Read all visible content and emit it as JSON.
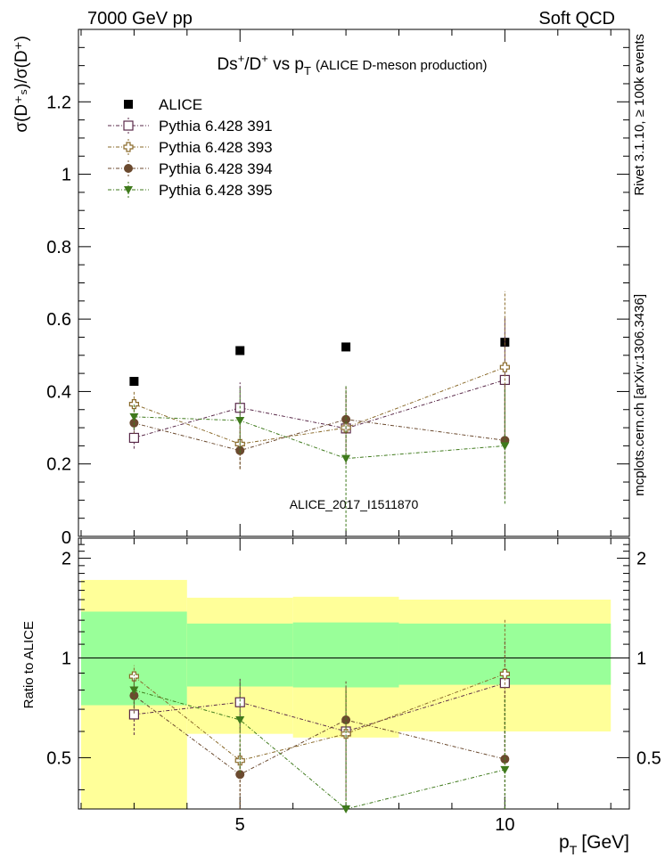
{
  "header": {
    "left": "7000 GeV pp",
    "right": "Soft QCD"
  },
  "side_labels": {
    "rivet": "Rivet 3.1.10, ≥ 100k events",
    "mcplots": "mcplots.cern.ch [arXiv:1306.3436]"
  },
  "chart_data": {
    "type": "scatter",
    "title": {
      "main": "Ds",
      "main_sup": "+",
      "slash": "/D",
      "slash_sup": "+",
      "vs": " vs p",
      "vs_sub": "T",
      "sub": "(ALICE D-meson production)"
    },
    "analysis_tag": "ALICE_2017_I1511870",
    "xlabel": "p",
    "xlabel_sub": "T",
    "xlabel_unit": "[GeV]",
    "ylabel": "σ(D⁺ₛ)/σ(D⁺)",
    "ratio_ylabel": "Ratio to ALICE",
    "xlim": [
      1.95,
      12.35
    ],
    "ylim_main": [
      0,
      1.4
    ],
    "ylim_ratio": [
      0.35,
      2.3
    ],
    "x_ticks": [
      5,
      10
    ],
    "y_ticks_main": [
      0.2,
      0.4,
      0.6,
      0.8,
      1.0,
      1.2
    ],
    "y_ticks_main_labels": [
      "0.2",
      "0.4",
      "0.6",
      "0.8",
      "1",
      "1.2"
    ],
    "y_zero_label": "0",
    "y_ticks_ratio": [
      0.5,
      1,
      2
    ],
    "y_ticks_ratio_labels": [
      "0.5",
      "1",
      "2"
    ],
    "x": [
      3,
      5,
      7,
      10
    ],
    "bins": [
      [
        2,
        4
      ],
      [
        4,
        6
      ],
      [
        6,
        8
      ],
      [
        8,
        12
      ]
    ],
    "series": [
      {
        "name": "ALICE",
        "marker": "square-filled",
        "color": "#000000",
        "values": [
          0.428,
          0.513,
          0.523,
          0.536
        ],
        "err": [
          0,
          0,
          0,
          0
        ]
      },
      {
        "name": "Pythia 6.428 391",
        "marker": "square-open",
        "color": "#5a2a4a",
        "values": [
          0.272,
          0.355,
          0.298,
          0.432
        ],
        "err": [
          0.03,
          0.07,
          0.1,
          0.17
        ],
        "ratio": [
          0.675,
          0.735,
          0.6,
          0.84
        ],
        "ratio_err": [
          0.09,
          0.13,
          0.22,
          0.3
        ]
      },
      {
        "name": "Pythia 6.428 393",
        "marker": "cross-open",
        "color": "#8a6a2a",
        "values": [
          0.365,
          0.255,
          0.3,
          0.467
        ],
        "err": [
          0.035,
          0.07,
          0.1,
          0.21
        ],
        "ratio": [
          0.88,
          0.49,
          0.59,
          0.895
        ],
        "ratio_err": [
          0.07,
          0.13,
          0.22,
          0.42
        ]
      },
      {
        "name": "Pythia 6.428 394",
        "marker": "circle-filled",
        "color": "#6b4a2f",
        "values": [
          0.313,
          0.237,
          0.323,
          0.265
        ],
        "err": [
          0.03,
          0.05,
          0.09,
          0.16
        ],
        "ratio": [
          0.77,
          0.445,
          0.65,
          0.495
        ],
        "ratio_err": [
          0.09,
          0.1,
          0.2,
          0.3
        ]
      },
      {
        "name": "Pythia 6.428 395",
        "marker": "triangle-down-filled",
        "color": "#3f7a1c",
        "values": [
          0.33,
          0.32,
          0.215,
          0.25
        ],
        "err": [
          0.035,
          0.09,
          0.2,
          0.16
        ],
        "ratio": [
          0.8,
          0.65,
          0.35,
          0.46
        ],
        "ratio_err": [
          0.09,
          0.2,
          0.45,
          0.3
        ]
      }
    ],
    "ratio_bands": {
      "inner_color": "#99ff99",
      "outer_color": "#ffff99",
      "inner": [
        [
          0.72,
          1.38
        ],
        [
          0.82,
          1.27
        ],
        [
          0.815,
          1.28
        ],
        [
          0.83,
          1.27
        ]
      ],
      "outer": [
        [
          0.35,
          1.72
        ],
        [
          0.59,
          1.52
        ],
        [
          0.575,
          1.53
        ],
        [
          0.6,
          1.5
        ]
      ]
    }
  }
}
